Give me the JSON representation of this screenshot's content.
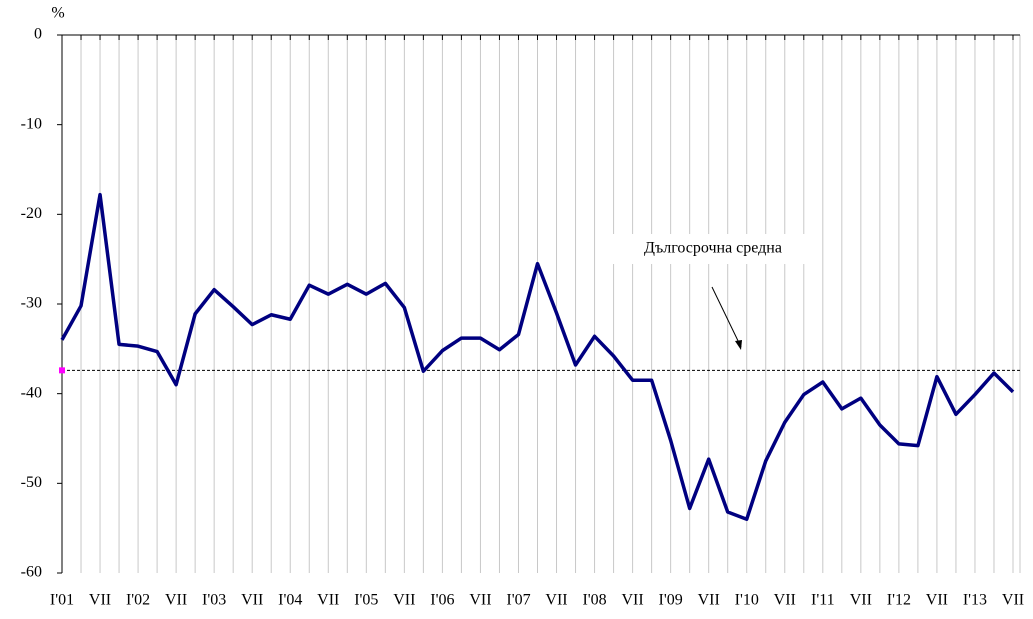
{
  "chart_data": {
    "type": "line",
    "y_label": "%",
    "categories": [
      "I'01",
      null,
      "VII",
      null,
      "I'02",
      null,
      "VII",
      null,
      "I'03",
      null,
      "VII",
      null,
      "I'04",
      null,
      "VII",
      null,
      "I'05",
      null,
      "VII",
      null,
      "I'06",
      null,
      "VII",
      null,
      "I'07",
      null,
      "VII",
      null,
      "I'08",
      null,
      "VII",
      null,
      "I'09",
      null,
      "VII",
      null,
      "I'10",
      null,
      "VII",
      null,
      "I'11",
      null,
      "VII",
      null,
      "I'12",
      null,
      "VII",
      null,
      "I'13",
      null,
      "VII"
    ],
    "values": [
      -34,
      -30.2,
      -17.8,
      -34.5,
      -34.7,
      -35.3,
      -39,
      -31.1,
      -28.4,
      -30.3,
      -32.3,
      -31.2,
      -31.7,
      -27.9,
      -28.9,
      -27.8,
      -28.9,
      -27.7,
      -30.4,
      -37.5,
      -35.2,
      -33.8,
      -33.8,
      -35.1,
      -33.4,
      -25.5,
      -31,
      -36.8,
      -33.6,
      -35.8,
      -38.5,
      -38.5,
      -45.2,
      -52.8,
      -47.3,
      -53.2,
      -54,
      -47.5,
      -43.2,
      -40.1,
      -38.7,
      -41.7,
      -40.5,
      -43.5,
      -45.6,
      -45.8,
      -38.1,
      -42.3,
      -40.1,
      -37.7,
      -39.8
    ],
    "color": "#000080",
    "average": {
      "label": "Дългосрочна средна",
      "value": -37.4,
      "color": "#000000",
      "marker_color": "#ff00ff"
    },
    "ylim": [
      -60,
      0
    ],
    "yticks": [
      -60,
      -50,
      -40,
      -30,
      -20,
      -10,
      0
    ],
    "grid": true
  }
}
